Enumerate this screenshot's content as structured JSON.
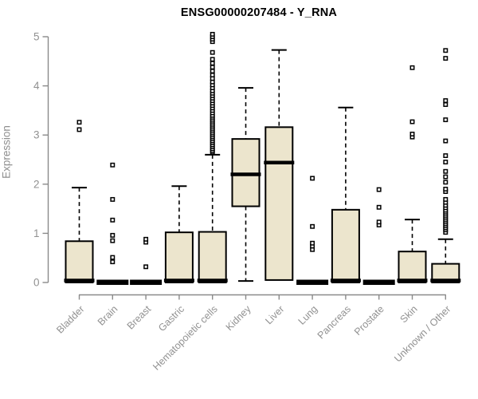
{
  "chart_data": {
    "type": "boxplot",
    "title": "ENSG00000207484 - Y_RNA",
    "ylabel": "Expression",
    "xlabel": "",
    "ylim": [
      0,
      5.1
    ],
    "yticks": [
      0,
      1,
      2,
      3,
      4,
      5
    ],
    "grid": false,
    "legend": "none",
    "categories": [
      "Bladder",
      "Brain",
      "Breast",
      "Gastric",
      "Hematopoietic cells",
      "Kidney",
      "Liver",
      "Lung",
      "Pancreas",
      "Prostate",
      "Skin",
      "Unknown / Other"
    ],
    "boxes": [
      {
        "category": "Bladder",
        "whisker_low": 0,
        "q1": 0,
        "median": 0.02,
        "q3": 0.84,
        "whisker_high": 1.93,
        "outliers": [
          3.11,
          3.26
        ]
      },
      {
        "category": "Brain",
        "whisker_low": 0,
        "q1": 0,
        "median": 0,
        "q3": 0,
        "whisker_high": 0,
        "outliers": [
          0.42,
          0.51,
          0.85,
          0.96,
          1.27,
          1.69,
          2.39
        ]
      },
      {
        "category": "Breast",
        "whisker_low": 0,
        "q1": 0,
        "median": 0,
        "q3": 0,
        "whisker_high": 0,
        "outliers": [
          0.32,
          0.82,
          0.88
        ]
      },
      {
        "category": "Gastric",
        "whisker_low": 0,
        "q1": 0,
        "median": 0.02,
        "q3": 1.02,
        "whisker_high": 1.96,
        "outliers": []
      },
      {
        "category": "Hematopoietic cells",
        "whisker_low": 0,
        "q1": 0,
        "median": 0.02,
        "q3": 1.03,
        "whisker_high": 2.6,
        "outliers": [
          2.65,
          2.68,
          2.72,
          2.76,
          2.8,
          2.84,
          2.88,
          2.92,
          2.96,
          3.0,
          3.04,
          3.08,
          3.12,
          3.16,
          3.2,
          3.24,
          3.28,
          3.32,
          3.36,
          3.4,
          3.45,
          3.5,
          3.55,
          3.6,
          3.65,
          3.7,
          3.75,
          3.8,
          3.85,
          3.9,
          3.96,
          4.02,
          4.08,
          4.15,
          4.22,
          4.3,
          4.38,
          4.46,
          4.54,
          4.68,
          4.9,
          4.95,
          5.0,
          5.05
        ]
      },
      {
        "category": "Kidney",
        "whisker_low": 0.03,
        "q1": 1.55,
        "median": 2.2,
        "q3": 2.92,
        "whisker_high": 3.96,
        "outliers": []
      },
      {
        "category": "Liver",
        "whisker_low": 0.05,
        "q1": 0.05,
        "median": 2.44,
        "q3": 3.16,
        "whisker_high": 4.73,
        "outliers": []
      },
      {
        "category": "Lung",
        "whisker_low": 0,
        "q1": 0,
        "median": 0,
        "q3": 0,
        "whisker_high": 0,
        "outliers": [
          0.67,
          0.74,
          0.8,
          1.14,
          2.12
        ]
      },
      {
        "category": "Pancreas",
        "whisker_low": 0,
        "q1": 0,
        "median": 0.02,
        "q3": 1.48,
        "whisker_high": 3.56,
        "outliers": []
      },
      {
        "category": "Prostate",
        "whisker_low": 0,
        "q1": 0,
        "median": 0,
        "q3": 0,
        "whisker_high": 0,
        "outliers": [
          1.17,
          1.23,
          1.53,
          1.89
        ]
      },
      {
        "category": "Skin",
        "whisker_low": 0,
        "q1": 0,
        "median": 0.02,
        "q3": 0.63,
        "whisker_high": 1.28,
        "outliers": [
          2.96,
          3.02,
          3.27,
          4.37
        ]
      },
      {
        "category": "Unknown / Other",
        "whisker_low": 0,
        "q1": 0,
        "median": 0.02,
        "q3": 0.38,
        "whisker_high": 0.88,
        "outliers": [
          1.02,
          1.07,
          1.11,
          1.15,
          1.19,
          1.23,
          1.27,
          1.31,
          1.35,
          1.39,
          1.43,
          1.47,
          1.52,
          1.57,
          1.63,
          1.69,
          1.85,
          1.9,
          2.04,
          2.15,
          2.26,
          2.45,
          2.58,
          2.88,
          3.31,
          3.62,
          3.7,
          4.56,
          4.72
        ]
      }
    ],
    "colors": {
      "box_fill": "#ECE5CD",
      "box_stroke": "#000000",
      "median": "#000000",
      "whisker": "#000000",
      "outlier_fill": "#ffffff",
      "outlier_stroke": "#000000",
      "axis": "#8a8a8a",
      "tick_label": "#919191",
      "title": "#000000"
    }
  }
}
